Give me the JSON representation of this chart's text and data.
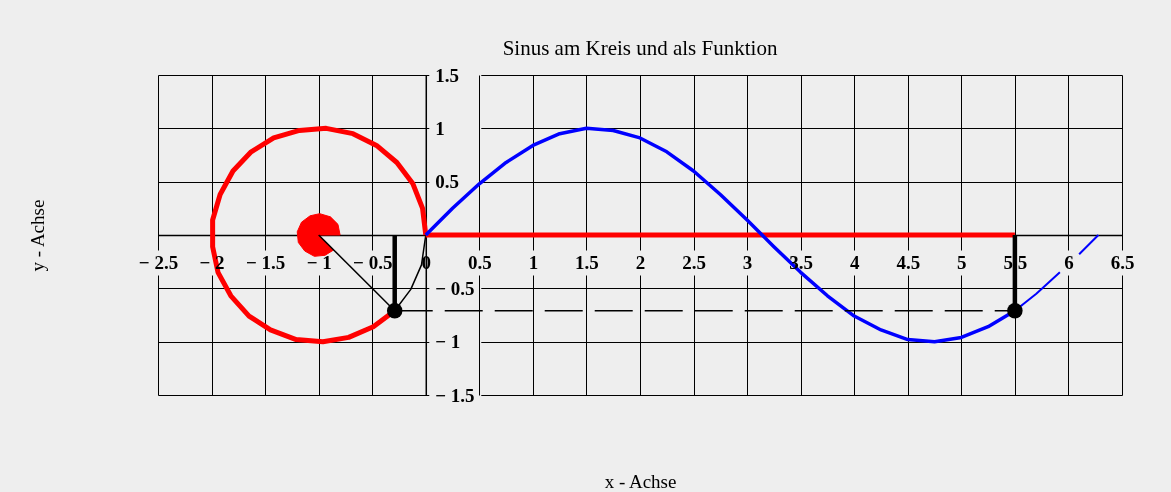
{
  "chart_data": {
    "type": "line",
    "title": "Sinus am Kreis und als Funktion",
    "xlabel": "x - Achse",
    "ylabel": "y - Achse",
    "xlim": [
      -2.5,
      6.5
    ],
    "ylim": [
      -1.5,
      1.5
    ],
    "xticks": [
      {
        "value": -2.5,
        "label": "− 2.5"
      },
      {
        "value": -2,
        "label": "− 2"
      },
      {
        "value": -1.5,
        "label": "− 1.5"
      },
      {
        "value": -1,
        "label": "− 1"
      },
      {
        "value": -0.5,
        "label": "− 0.5"
      },
      0,
      0.5,
      1,
      1.5,
      2,
      2.5,
      3,
      3.5,
      4,
      4.5,
      5,
      5.5,
      6,
      6.5
    ],
    "yticks": [
      {
        "value": -1.5,
        "label": "− 1.5"
      },
      {
        "value": -1,
        "label": "− 1"
      },
      {
        "value": -0.5,
        "label": "− 0.5"
      },
      0.5,
      1,
      1.5
    ],
    "grid": true,
    "series": [
      {
        "color": "#ff0000",
        "x": [
          0,
          -0.03,
          -0.12,
          -0.27,
          -0.46,
          -0.68,
          -0.93,
          -1.18,
          -1.42,
          -1.63,
          -1.8,
          -1.92,
          -1.99,
          -1.99,
          -1.94,
          -1.82,
          -1.65,
          -1.45,
          -1.21,
          -0.96,
          -0.72,
          -0.49,
          -0.29
        ],
        "values": [
          0,
          0.25,
          0.48,
          0.68,
          0.84,
          0.95,
          1.0,
          0.98,
          0.91,
          0.78,
          0.6,
          0.38,
          0.14,
          -0.11,
          -0.35,
          -0.57,
          -0.76,
          -0.89,
          -0.98,
          -1.0,
          -0.96,
          -0.86,
          -0.71
        ]
      },
      {
        "color": "#000000",
        "x": [
          -0.29,
          -0.14,
          -0.04,
          0
        ],
        "values": [
          -0.71,
          -0.51,
          -0.28,
          0
        ]
      },
      {
        "type": "area",
        "color": "#ff0000",
        "x": [
          -1,
          -0.8,
          -0.82,
          -0.89,
          -0.99,
          -1.08,
          -1.16,
          -1.2,
          -1.19,
          -1.13,
          -1.04,
          -0.94,
          -0.86,
          -1
        ],
        "values": [
          0,
          0,
          0.1,
          0.17,
          0.2,
          0.18,
          0.12,
          0.03,
          -0.07,
          -0.15,
          -0.2,
          -0.19,
          -0.14,
          0
        ]
      },
      {
        "color": "#000000",
        "x": [
          -1,
          -0.29
        ],
        "values": [
          0,
          -0.71
        ]
      },
      {
        "color": "#ff0000",
        "x": [
          0,
          5.5
        ],
        "values": [
          0,
          0
        ]
      },
      {
        "color": "#0000ff",
        "x": [
          0,
          0.25,
          0.5,
          0.75,
          1,
          1.25,
          1.5,
          1.75,
          2,
          2.25,
          2.5,
          2.75,
          3,
          3.14,
          3.25,
          3.5,
          3.75,
          4,
          4.25,
          4.5,
          4.75,
          5,
          5.25,
          5.5
        ],
        "values": [
          0,
          0.25,
          0.48,
          0.68,
          0.84,
          0.95,
          1.0,
          0.98,
          0.91,
          0.78,
          0.6,
          0.38,
          0.14,
          0,
          -0.11,
          -0.35,
          -0.57,
          -0.76,
          -0.89,
          -0.98,
          -1.0,
          -0.96,
          -0.86,
          -0.71
        ]
      },
      {
        "color": "#0000ff",
        "x": [
          5.5,
          5.6,
          5.7,
          5.8,
          5.92
        ],
        "values": [
          -0.71,
          -0.63,
          -0.55,
          -0.46,
          -0.35
        ]
      },
      {
        "color": "#0000ff",
        "x": [
          6.1,
          6.2,
          6.28
        ],
        "values": [
          -0.18,
          -0.08,
          0
        ]
      },
      {
        "color": "#000000",
        "line_style": "dashed",
        "x": [
          -0.29,
          5.5
        ],
        "values": [
          -0.71,
          -0.71
        ]
      },
      {
        "color": "#000000",
        "x": [
          -0.29,
          -0.29
        ],
        "values": [
          0,
          -0.71
        ]
      },
      {
        "color": "#000000",
        "x": [
          5.5,
          5.5
        ],
        "values": [
          0,
          -0.71
        ]
      },
      {
        "type": "scatter",
        "color": "#000000",
        "marker": "circle",
        "x": [
          -0.29,
          5.5
        ],
        "values": [
          -0.71,
          -0.71
        ]
      }
    ]
  }
}
